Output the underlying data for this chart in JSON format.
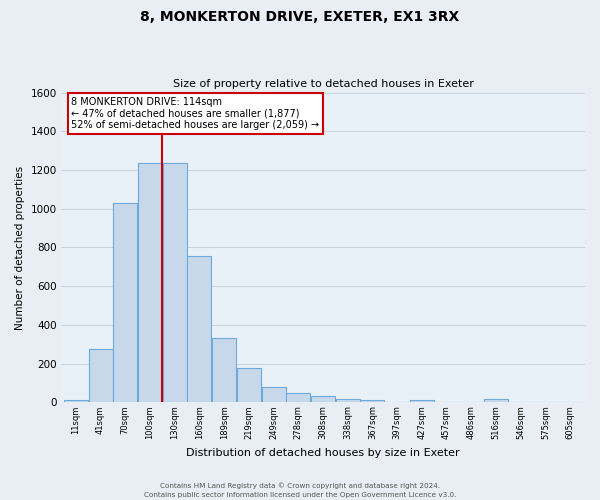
{
  "title": "8, MONKERTON DRIVE, EXETER, EX1 3RX",
  "subtitle": "Size of property relative to detached houses in Exeter",
  "xlabel": "Distribution of detached houses by size in Exeter",
  "ylabel": "Number of detached properties",
  "bin_labels": [
    "11sqm",
    "41sqm",
    "70sqm",
    "100sqm",
    "130sqm",
    "160sqm",
    "189sqm",
    "219sqm",
    "249sqm",
    "278sqm",
    "308sqm",
    "338sqm",
    "367sqm",
    "397sqm",
    "427sqm",
    "457sqm",
    "486sqm",
    "516sqm",
    "546sqm",
    "575sqm",
    "605sqm"
  ],
  "bar_values": [
    10,
    275,
    1030,
    1235,
    1235,
    755,
    330,
    180,
    80,
    48,
    32,
    18,
    12,
    0,
    12,
    0,
    0,
    18,
    0,
    0,
    0
  ],
  "bar_color": "#c8d8eb",
  "bar_edge_color": "#6aabdc",
  "vline_color": "#cc0000",
  "annotation_text": "8 MONKERTON DRIVE: 114sqm\n← 47% of detached houses are smaller (1,877)\n52% of semi-detached houses are larger (2,059) →",
  "annotation_box_color": "#ffffff",
  "annotation_box_edge": "#cc0000",
  "ylim": [
    0,
    1600
  ],
  "yticks": [
    0,
    200,
    400,
    600,
    800,
    1000,
    1200,
    1400,
    1600
  ],
  "footer_line1": "Contains HM Land Registry data © Crown copyright and database right 2024.",
  "footer_line2": "Contains public sector information licensed under the Open Government Licence v3.0.",
  "bg_color": "#e8eef4",
  "plot_bg_color": "#e8f0f8",
  "grid_color": "#c8d4e0"
}
